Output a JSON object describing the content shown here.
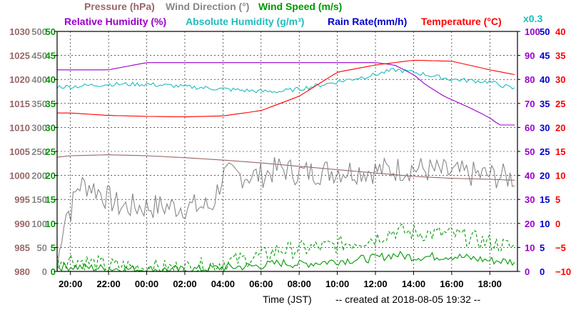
{
  "chart_data": {
    "type": "line",
    "title_rows": [
      [
        {
          "text": "Pressure (hPa)",
          "color": "#996666"
        },
        {
          "text": "Wind Direction (°)",
          "color": "#888888"
        },
        {
          "text": "Wind Speed (m/s)",
          "color": "#009900"
        }
      ],
      [
        {
          "text": "Relative Humidity (%)",
          "color": "#9900cc"
        },
        {
          "text": "Absolute Humidity (g/m³)",
          "color": "#22bbbb"
        },
        {
          "text": "Rain Rate(mm/h)",
          "color": "#0000cc"
        },
        {
          "text": "Temperature (°C)",
          "color": "#ff0000"
        }
      ]
    ],
    "abs_humidity_scale_note": "x0.3",
    "xlabel": "Time (JST)",
    "footer": "-- created at 2018-08-05 19:32 --",
    "x_ticks": [
      "20:00",
      "22:00",
      "00:00",
      "02:00",
      "04:00",
      "06:00",
      "08:00",
      "10:00",
      "12:00",
      "14:00",
      "16:00",
      "18:00"
    ],
    "x_range_hours": [
      -0.7,
      23.45
    ],
    "grid": true,
    "axes": [
      {
        "name": "Pressure",
        "unit": "hPa",
        "side": "left",
        "color": "#996666",
        "range": [
          980,
          1030
        ],
        "ticks": [
          "980",
          "985",
          "990",
          "995",
          "1000",
          "1005",
          "1010",
          "1015",
          "1020",
          "1025",
          "1030"
        ]
      },
      {
        "name": "Wind Direction",
        "unit": "°",
        "side": "left",
        "color": "#888888",
        "range": [
          0,
          500
        ],
        "ticks": [
          "0",
          "50",
          "100",
          "150",
          "200",
          "250",
          "300",
          "350",
          "400",
          "450",
          "500"
        ]
      },
      {
        "name": "Wind Speed",
        "unit": "m/s",
        "side": "left",
        "color": "#009900",
        "range": [
          0,
          50
        ],
        "ticks": [
          "0",
          "5",
          "10",
          "15",
          "20",
          "25",
          "30",
          "35",
          "40",
          "45",
          "50"
        ]
      },
      {
        "name": "Relative Humidity",
        "unit": "%",
        "side": "right",
        "color": "#9900cc",
        "range": [
          0,
          100
        ],
        "ticks": [
          "0",
          "10",
          "20",
          "30",
          "40",
          "50",
          "60",
          "70",
          "80",
          "90",
          "100"
        ]
      },
      {
        "name": "Rain Rate",
        "unit": "mm/h",
        "side": "right",
        "color": "#0000cc",
        "range": [
          0,
          50
        ],
        "ticks": [
          "0",
          "5",
          "10",
          "15",
          "20",
          "25",
          "30",
          "35",
          "40",
          "45",
          "50"
        ]
      },
      {
        "name": "Temperature",
        "unit": "°C",
        "side": "right",
        "color": "#ff0000",
        "range": [
          -10,
          40
        ],
        "ticks": [
          "−10",
          "−5",
          "0",
          "5",
          "10",
          "15",
          "20",
          "25",
          "30",
          "35",
          "40"
        ]
      }
    ],
    "series": [
      {
        "name": "Pressure",
        "axis": 0,
        "color": "#996666",
        "dashed": false,
        "x": [
          -0.7,
          0,
          2,
          4,
          6,
          8,
          10,
          12,
          14,
          16,
          18,
          20,
          22,
          23.3
        ],
        "y": [
          1003.8,
          1004.1,
          1004.3,
          1004.1,
          1003.7,
          1003.2,
          1002.6,
          1001.9,
          1001.2,
          1000.5,
          999.8,
          999.4,
          999.2,
          999.0
        ]
      },
      {
        "name": "Wind Direction",
        "axis": 1,
        "color": "#888888",
        "dashed": false,
        "noise": 28,
        "x": [
          -0.7,
          -0.4,
          -0.2,
          0,
          0.4,
          1,
          2.6,
          4,
          7.4,
          8,
          9,
          10,
          11,
          12,
          14,
          16,
          18,
          20,
          22,
          23.3
        ],
        "y": [
          0,
          100,
          125,
          125,
          180,
          180,
          135,
          135,
          135,
          200,
          200,
          200,
          215,
          205,
          210,
          210,
          215,
          205,
          200,
          195
        ]
      },
      {
        "name": "Wind Speed (average)",
        "axis": 2,
        "color": "#009900",
        "dashed": false,
        "noise": 0.9,
        "x": [
          -0.7,
          0,
          2,
          4,
          6,
          8,
          10,
          11,
          12,
          14,
          16,
          17,
          18,
          20,
          22,
          23.3
        ],
        "y": [
          1.0,
          1.0,
          0.6,
          0.4,
          0.3,
          0.8,
          1.2,
          1.8,
          1.5,
          2.2,
          2.8,
          3.5,
          3.0,
          3.2,
          2.3,
          2.0
        ]
      },
      {
        "name": "Wind Speed (gust)",
        "axis": 2,
        "color": "#009900",
        "dashed": true,
        "noise": 1.8,
        "x": [
          -0.7,
          0,
          2,
          4,
          6,
          8,
          10,
          11,
          12,
          14,
          16,
          17,
          18,
          20,
          22,
          23.3
        ],
        "y": [
          2.5,
          2.5,
          1.2,
          0.8,
          0.6,
          1.8,
          3.2,
          4.5,
          4.6,
          5.5,
          7.0,
          8.5,
          8.0,
          7.8,
          6.0,
          5.0
        ]
      },
      {
        "name": "Relative Humidity",
        "axis": 3,
        "color": "#9900cc",
        "dashed": false,
        "x": [
          -0.7,
          0,
          2,
          4,
          6,
          8,
          10,
          10.5,
          12,
          14,
          16,
          17,
          18,
          18.6,
          19.6,
          21,
          22,
          22.5,
          23.3
        ],
        "y": [
          84,
          84,
          84,
          87,
          87,
          87,
          87,
          87,
          87,
          87,
          87,
          86,
          82,
          78,
          73,
          68,
          64,
          61,
          61
        ]
      },
      {
        "name": "Absolute Humidity",
        "axis": 3,
        "color": "#22bbbb",
        "dashed": false,
        "noise": 0.9,
        "x": [
          -0.7,
          0,
          2,
          4,
          6,
          8,
          10,
          11,
          12,
          14,
          16,
          17,
          18,
          20,
          22,
          23.3
        ],
        "y": [
          77,
          77,
          78,
          78,
          77,
          76,
          75,
          75,
          76,
          79,
          82,
          84,
          83,
          80,
          79,
          76
        ]
      },
      {
        "name": "Temperature",
        "axis": 5,
        "color": "#ff0000",
        "dashed": false,
        "x": [
          -0.7,
          0,
          2,
          4,
          6,
          8,
          10,
          12,
          13,
          14,
          16,
          18,
          20,
          22,
          23.3
        ],
        "y": [
          23.0,
          23.0,
          22.5,
          22.3,
          22.2,
          22.4,
          23.5,
          26.5,
          29,
          31.5,
          33,
          34,
          33.8,
          32.0,
          31.0
        ]
      },
      {
        "name": "Rain Rate",
        "axis": 4,
        "color": "#0000cc",
        "dashed": false,
        "x": [
          -0.7,
          23.3
        ],
        "y": [
          0,
          0
        ]
      }
    ]
  }
}
